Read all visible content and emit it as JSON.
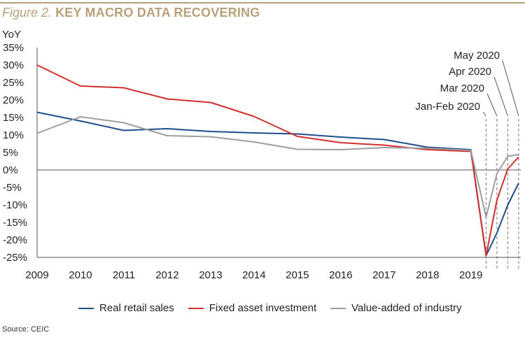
{
  "header": {
    "figure_label": "Figure 2.",
    "title": "KEY MACRO DATA RECOVERING"
  },
  "footer": {
    "source": "Source: CEIC"
  },
  "colors": {
    "accent": "#b9a07a"
  },
  "chart_data": {
    "type": "line",
    "ylabel": "YoY",
    "ylim": [
      -25,
      35
    ],
    "y_ticks": [
      "35%",
      "30%",
      "25%",
      "20%",
      "15%",
      "10%",
      "5%",
      "0%",
      "-5%",
      "-10%",
      "-15%",
      "-20%",
      "-25%"
    ],
    "y_tick_values": [
      35,
      30,
      25,
      20,
      15,
      10,
      5,
      0,
      -5,
      -10,
      -15,
      -20,
      -25
    ],
    "x_ticks": [
      "2009",
      "2010",
      "2011",
      "2012",
      "2013",
      "2014",
      "2015",
      "2016",
      "2017",
      "2018",
      "2019"
    ],
    "x_tick_values": [
      2009,
      2010,
      2011,
      2012,
      2013,
      2014,
      2015,
      2016,
      2017,
      2018,
      2019
    ],
    "xlim": [
      2009,
      2020.15
    ],
    "grid": false,
    "zero_line": true,
    "legend_position": "bottom",
    "series": [
      {
        "name": "Real retail sales",
        "color": "#1f4e8c",
        "x": [
          2009,
          2010,
          2011,
          2012,
          2013,
          2014,
          2015,
          2016,
          2017,
          2018,
          2019,
          2019.35,
          2019.6,
          2019.85,
          2020.1
        ],
        "y": [
          16.5,
          14.0,
          11.3,
          11.8,
          11.0,
          10.6,
          10.3,
          9.4,
          8.7,
          6.5,
          5.8,
          -24.5,
          -18.0,
          -10.0,
          -3.8
        ]
      },
      {
        "name": "Fixed asset investment",
        "color": "#d32f2f",
        "x": [
          2009,
          2010,
          2011,
          2012,
          2013,
          2014,
          2015,
          2016,
          2017,
          2018,
          2019,
          2019.35,
          2019.6,
          2019.85,
          2020.1
        ],
        "y": [
          30.0,
          24.0,
          23.5,
          20.3,
          19.3,
          15.3,
          9.6,
          7.8,
          7.1,
          5.8,
          5.3,
          -24.5,
          -8.6,
          0.3,
          3.7
        ]
      },
      {
        "name": "Value-added of industry",
        "color": "#9e9e9e",
        "x": [
          2009,
          2010,
          2011,
          2012,
          2013,
          2014,
          2015,
          2016,
          2017,
          2018,
          2019,
          2019.35,
          2019.6,
          2019.85,
          2020.1
        ],
        "y": [
          10.5,
          15.2,
          13.5,
          9.8,
          9.5,
          8.0,
          5.9,
          5.8,
          6.4,
          6.2,
          5.6,
          -13.5,
          -1.0,
          3.9,
          4.4
        ]
      }
    ],
    "annotations": [
      {
        "label": "Jan-Feb 2020",
        "x": 2019.35
      },
      {
        "label": "Mar 2020",
        "x": 2019.6
      },
      {
        "label": "Apr 2020",
        "x": 2019.85
      },
      {
        "label": "May 2020",
        "x": 2020.1
      }
    ]
  }
}
